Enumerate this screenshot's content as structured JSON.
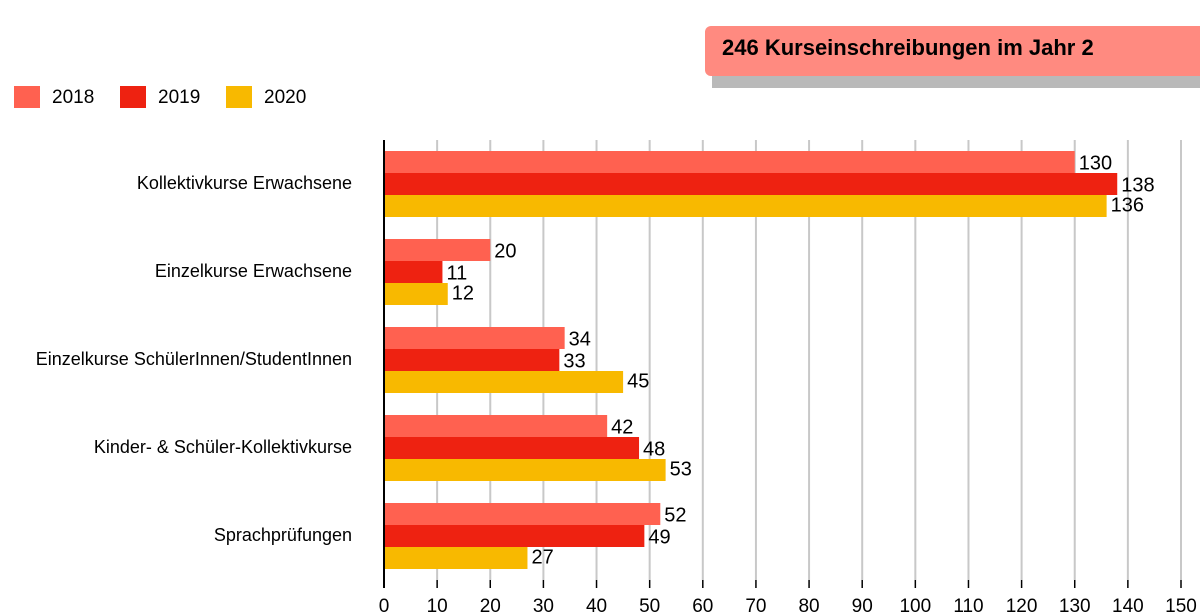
{
  "chart_data": {
    "type": "hbar",
    "title": "246 Kurseinschreibungen im Jahr 2",
    "categories": [
      "Kollektivkurse Erwachsene",
      "Einzelkurse Erwachsene",
      "Einzelkurse SchülerInnen/StudentInnen",
      "Kinder- & Schüler-Kollektivkurse",
      "Sprachprüfungen"
    ],
    "series": [
      {
        "name": "2018",
        "color": "#ff6150",
        "values": [
          130,
          20,
          34,
          42,
          52
        ]
      },
      {
        "name": "2019",
        "color": "#ee2211",
        "values": [
          138,
          11,
          33,
          48,
          49
        ]
      },
      {
        "name": "2020",
        "color": "#f8b900",
        "values": [
          136,
          12,
          45,
          53,
          27
        ]
      }
    ],
    "xlim": [
      0,
      150
    ],
    "xticks": [
      0,
      10,
      20,
      30,
      40,
      50,
      60,
      70,
      80,
      90,
      100,
      110,
      120,
      130,
      140,
      150
    ],
    "grid": true,
    "legend": "top-left"
  }
}
